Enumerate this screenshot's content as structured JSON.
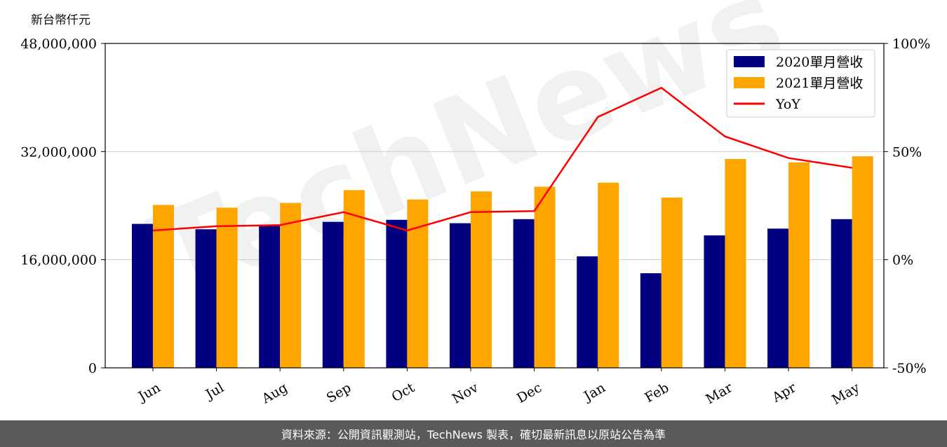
{
  "unit_label": "新台幣仟元",
  "footer_text": "資料來源：公開資訊觀測站，TechNews 製表，確切最新訊息以原站公告為準",
  "watermark": "TechNews",
  "colors": {
    "series_2020": "#000080",
    "series_2021": "#ffa500",
    "yoy_line": "#ff0000",
    "grid": "#cccccc",
    "footer_bg": "#5a5a5a"
  },
  "chart_data": {
    "type": "bar",
    "categories": [
      "Jun",
      "Jul",
      "Aug",
      "Sep",
      "Oct",
      "Nov",
      "Dec",
      "Jan",
      "Feb",
      "Mar",
      "Apr",
      "May"
    ],
    "series": [
      {
        "name": "2020單月營收",
        "values": [
          21300000,
          20500000,
          21000000,
          21600000,
          21900000,
          21400000,
          22000000,
          16500000,
          14000000,
          19600000,
          20600000,
          22000000
        ]
      },
      {
        "name": "2021單月營收",
        "values": [
          24100000,
          23700000,
          24400000,
          26300000,
          24900000,
          26100000,
          26800000,
          27400000,
          25200000,
          30900000,
          30400000,
          31300000
        ]
      }
    ],
    "line_series": {
      "name": "YoY",
      "axis": "right",
      "values": [
        13.5,
        15.5,
        16,
        22,
        13.5,
        22,
        22.5,
        66,
        79.5,
        57,
        47,
        42.5
      ]
    },
    "ylim": [
      0,
      48000000
    ],
    "y_ticks": [
      "0",
      "16,000,000",
      "32,000,000",
      "48,000,000"
    ],
    "y2lim": [
      -50,
      100
    ],
    "y2_ticks": [
      "-50%",
      "0%",
      "50%",
      "100%"
    ],
    "grid": "horizontal",
    "legend_position": "top-right",
    "legend": [
      "2020單月營收",
      "2021單月營收",
      "YoY"
    ]
  }
}
